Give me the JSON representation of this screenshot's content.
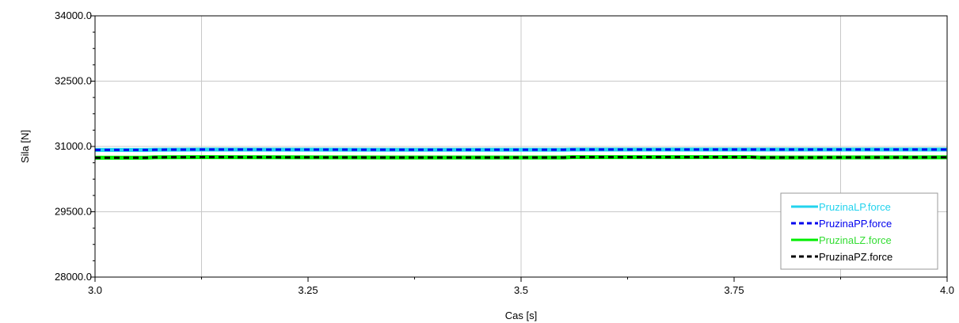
{
  "chart_data": {
    "type": "line",
    "xlabel": "Cas [s]",
    "ylabel": "Sila [N]",
    "xlim": [
      3.0,
      4.0
    ],
    "ylim": [
      28000,
      34000
    ],
    "xticks": [
      3.0,
      3.25,
      3.5,
      3.75,
      4.0
    ],
    "xtick_labels": [
      "3.0",
      "3.25",
      "3.5",
      "3.75",
      "4.0"
    ],
    "yticks": [
      28000,
      29500,
      31000,
      32500,
      34000
    ],
    "ytick_labels": [
      "28000.0",
      "29500.0",
      "31000.0",
      "32500.0",
      "34000.0"
    ],
    "grid": true,
    "legend_position": "bottom-right",
    "series": [
      {
        "name": "PruzinaLP.force",
        "color": "#22d3ee",
        "dash": "solid",
        "x": [
          3.0,
          3.06,
          3.07,
          3.13,
          3.35,
          3.55,
          3.56,
          3.75,
          4.0
        ],
        "y": [
          30920,
          30920,
          30925,
          30930,
          30925,
          30925,
          30930,
          30930,
          30930
        ]
      },
      {
        "name": "PruzinaPP.force",
        "color": "#0000ee",
        "dash": "dashed",
        "x": [
          3.0,
          3.06,
          3.07,
          3.13,
          3.35,
          3.55,
          3.56,
          3.75,
          4.0
        ],
        "y": [
          30920,
          30920,
          30925,
          30930,
          30925,
          30925,
          30930,
          30930,
          30930
        ]
      },
      {
        "name": "PruzinaLZ.force",
        "color": "#00ee00",
        "dash": "solid",
        "x": [
          3.0,
          3.06,
          3.07,
          3.13,
          3.35,
          3.55,
          3.56,
          3.77,
          3.78,
          4.0
        ],
        "y": [
          30740,
          30740,
          30750,
          30755,
          30745,
          30745,
          30755,
          30755,
          30745,
          30750
        ]
      },
      {
        "name": "PruzinaPZ.force",
        "color": "#000000",
        "dash": "dashed",
        "x": [
          3.0,
          3.06,
          3.07,
          3.13,
          3.35,
          3.55,
          3.56,
          3.77,
          3.78,
          4.0
        ],
        "y": [
          30740,
          30740,
          30750,
          30755,
          30745,
          30745,
          30755,
          30755,
          30745,
          30750
        ]
      }
    ]
  }
}
